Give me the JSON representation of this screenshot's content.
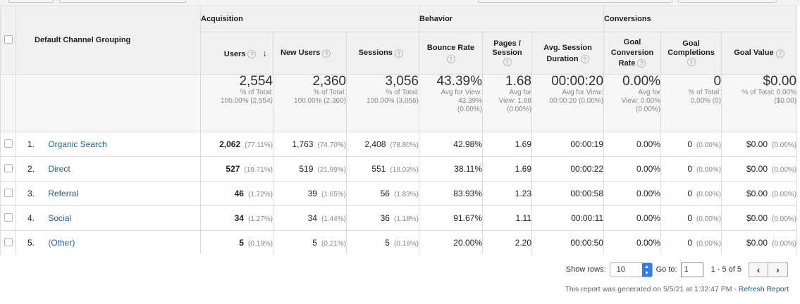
{
  "table": {
    "dimension_header": "Default Channel Grouping",
    "groups": {
      "acquisition": "Acquisition",
      "behavior": "Behavior",
      "conversions": "Conversions"
    },
    "columns": {
      "users": "Users",
      "new_users": "New Users",
      "sessions": "Sessions",
      "bounce_rate_l1": "Bounce Rate",
      "pages_session_l1": "Pages /",
      "pages_session_l2": "Session",
      "avg_session_l1": "Avg. Session",
      "avg_session_l2": "Duration",
      "goal_conv_l1": "Goal",
      "goal_conv_l2": "Conversion",
      "goal_conv_l3": "Rate",
      "goal_comp_l1": "Goal",
      "goal_comp_l2": "Completions",
      "goal_value": "Goal Value"
    },
    "help_glyph": "?",
    "sort_glyph": "↓",
    "totals": {
      "users": {
        "value": "2,554",
        "sub1": "% of Total:",
        "sub2": "100.00% (2,554)"
      },
      "new_users": {
        "value": "2,360",
        "sub1": "% of Total:",
        "sub2": "100.00% (2,360)"
      },
      "sessions": {
        "value": "3,056",
        "sub1": "% of Total:",
        "sub2": "100.00% (3,056)"
      },
      "bounce_rate": {
        "value": "43.39%",
        "sub1": "Avg for View:",
        "sub2": "43.39%",
        "sub3": "(0.00%)"
      },
      "pages_session": {
        "value": "1.68",
        "sub1": "Avg for",
        "sub2": "View: 1.68",
        "sub3": "(0.00%)"
      },
      "avg_session": {
        "value": "00:00:20",
        "sub1": "Avg for View:",
        "sub2": "00:00:20 (0.00%)"
      },
      "goal_conv": {
        "value": "0.00%",
        "sub1": "Avg for",
        "sub2": "View: 0.00%",
        "sub3": "(0.00%)"
      },
      "goal_comp": {
        "value": "0",
        "sub1": "% of Total:",
        "sub2": "0.00% (0)"
      },
      "goal_value": {
        "value": "$0.00",
        "sub1": "% of Total: 0.00%",
        "sub2": "($0.00)"
      }
    },
    "rows": [
      {
        "num": "1.",
        "channel": "Organic Search",
        "users": "2,062",
        "users_pct": "(77.11%)",
        "new_users": "1,763",
        "new_users_pct": "(74.70%)",
        "sessions": "2,408",
        "sessions_pct": "(78.80%)",
        "bounce": "42.98%",
        "pages": "1.69",
        "duration": "00:00:19",
        "conv_rate": "0.00%",
        "completions": "0",
        "completions_pct": "(0.00%)",
        "value": "$0.00",
        "value_pct": "(0.00%)"
      },
      {
        "num": "2.",
        "channel": "Direct",
        "users": "527",
        "users_pct": "(19.71%)",
        "new_users": "519",
        "new_users_pct": "(21.99%)",
        "sessions": "551",
        "sessions_pct": "(18.03%)",
        "bounce": "38.11%",
        "pages": "1.69",
        "duration": "00:00:22",
        "conv_rate": "0.00%",
        "completions": "0",
        "completions_pct": "(0.00%)",
        "value": "$0.00",
        "value_pct": "(0.00%)"
      },
      {
        "num": "3.",
        "channel": "Referral",
        "users": "46",
        "users_pct": "(1.72%)",
        "new_users": "39",
        "new_users_pct": "(1.65%)",
        "sessions": "56",
        "sessions_pct": "(1.83%)",
        "bounce": "83.93%",
        "pages": "1.23",
        "duration": "00:00:58",
        "conv_rate": "0.00%",
        "completions": "0",
        "completions_pct": "(0.00%)",
        "value": "$0.00",
        "value_pct": "(0.00%)"
      },
      {
        "num": "4.",
        "channel": "Social",
        "users": "34",
        "users_pct": "(1.27%)",
        "new_users": "34",
        "new_users_pct": "(1.44%)",
        "sessions": "36",
        "sessions_pct": "(1.18%)",
        "bounce": "91.67%",
        "pages": "1.11",
        "duration": "00:00:11",
        "conv_rate": "0.00%",
        "completions": "0",
        "completions_pct": "(0.00%)",
        "value": "$0.00",
        "value_pct": "(0.00%)"
      },
      {
        "num": "5.",
        "channel": "(Other)",
        "users": "5",
        "users_pct": "(0.19%)",
        "new_users": "5",
        "new_users_pct": "(0.21%)",
        "sessions": "5",
        "sessions_pct": "(0.16%)",
        "bounce": "20.00%",
        "pages": "2.20",
        "duration": "00:00:50",
        "conv_rate": "0.00%",
        "completions": "0",
        "completions_pct": "(0.00%)",
        "value": "$0.00",
        "value_pct": "(0.00%)"
      }
    ]
  },
  "footer": {
    "show_rows_label": "Show rows:",
    "show_rows_value": "10",
    "goto_label": "Go to:",
    "goto_value": "1",
    "range_text": "1 - 5 of 5",
    "prev_glyph": "‹",
    "next_glyph": "›",
    "generated_text": "This report was generated on 5/5/21 at 1:32:47 PM -",
    "refresh_label": "Refresh Report"
  }
}
